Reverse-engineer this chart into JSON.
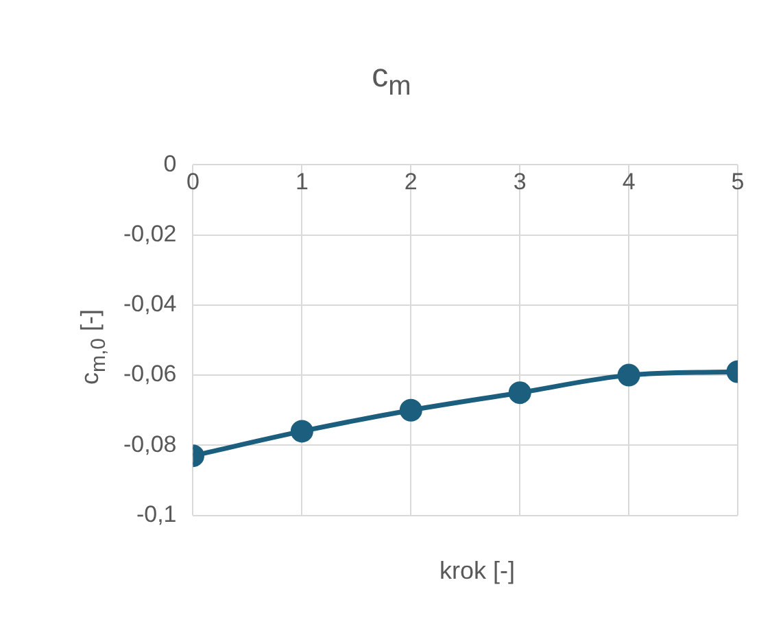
{
  "chart_data": {
    "type": "line",
    "title": "c$_{m}$",
    "xlabel": "krok [-]",
    "ylabel": "c$_{m,0}$ [-]",
    "x": [
      0,
      1,
      2,
      3,
      4,
      5
    ],
    "series": [
      {
        "color": "#1b5e7e",
        "values": [
          -0.083,
          -0.076,
          -0.07,
          -0.065,
          -0.06,
          -0.059
        ]
      }
    ],
    "xlim": [
      0,
      5
    ],
    "xticks": [
      0,
      1,
      2,
      3,
      4,
      5
    ],
    "ylim": [
      -0.1,
      0
    ],
    "yticks": [
      {
        "value": -0.1,
        "label": "-0,1"
      },
      {
        "value": -0.08,
        "label": "-0,08"
      },
      {
        "value": -0.06,
        "label": "-0,06"
      },
      {
        "value": -0.04,
        "label": "-0,04"
      },
      {
        "value": -0.02,
        "label": "-0,02"
      },
      {
        "value": 0,
        "label": "0"
      }
    ],
    "grid": true,
    "legend": false,
    "marker": "circle",
    "line_style": "solid"
  }
}
